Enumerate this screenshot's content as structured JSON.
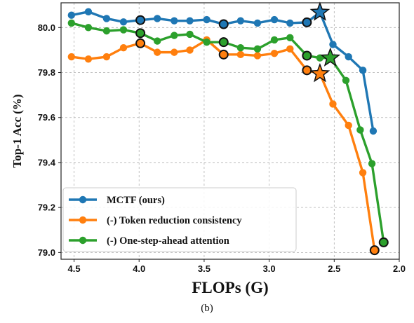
{
  "caption": "(b)",
  "chart_data": {
    "type": "line",
    "xlabel": "FLOPs (G)",
    "ylabel": "Top-1 Acc (%)",
    "xlim": [
      4.6,
      2.0
    ],
    "ylim": [
      78.97,
      80.11
    ],
    "x_inverted": true,
    "xticks": [
      "4.5",
      "4.0",
      "3.5",
      "3.0",
      "2.5",
      "2.0"
    ],
    "yticks": [
      "79.0",
      "79.2",
      "79.4",
      "79.6",
      "79.8",
      "80.0"
    ],
    "grid": true,
    "legend_position": "lower-left",
    "series": [
      {
        "name": "MCTF (ours)",
        "color": "#1f77b4",
        "x": [
          4.52,
          4.39,
          4.25,
          4.12,
          3.99,
          3.86,
          3.73,
          3.61,
          3.48,
          3.35,
          3.22,
          3.09,
          2.96,
          2.84,
          2.71,
          2.61,
          2.51,
          2.39,
          2.28,
          2.2
        ],
        "y": [
          80.055,
          80.07,
          80.04,
          80.025,
          80.033,
          80.04,
          80.03,
          80.03,
          80.035,
          80.015,
          80.03,
          80.02,
          80.035,
          80.02,
          80.023,
          80.068,
          79.925,
          79.87,
          79.81,
          79.54
        ],
        "highlighted_indices": [
          4,
          9,
          14
        ],
        "star_index": 15
      },
      {
        "name": "(-) Token reduction consistency",
        "color": "#ff7f0e",
        "x": [
          4.52,
          4.39,
          4.25,
          4.12,
          3.99,
          3.86,
          3.73,
          3.61,
          3.48,
          3.35,
          3.22,
          3.09,
          2.96,
          2.84,
          2.71,
          2.61,
          2.51,
          2.39,
          2.28,
          2.19
        ],
        "y": [
          79.87,
          79.86,
          79.87,
          79.91,
          79.93,
          79.89,
          79.89,
          79.9,
          79.945,
          79.88,
          79.88,
          79.875,
          79.885,
          79.905,
          79.81,
          79.795,
          79.66,
          79.565,
          79.355,
          79.01
        ],
        "highlighted_indices": [
          4,
          9,
          14,
          19
        ],
        "star_index": 15
      },
      {
        "name": "(-) One-step-ahead attention",
        "color": "#2ca02c",
        "x": [
          4.52,
          4.39,
          4.25,
          4.12,
          3.99,
          3.86,
          3.73,
          3.61,
          3.48,
          3.35,
          3.22,
          3.09,
          2.96,
          2.84,
          2.71,
          2.61,
          2.53,
          2.41,
          2.3,
          2.21,
          2.12
        ],
        "y": [
          80.02,
          80.0,
          79.985,
          79.99,
          79.975,
          79.94,
          79.965,
          79.97,
          79.935,
          79.935,
          79.91,
          79.905,
          79.945,
          79.955,
          79.875,
          79.865,
          79.865,
          79.765,
          79.545,
          79.395,
          79.045
        ],
        "highlighted_indices": [
          4,
          9,
          14,
          20
        ],
        "star_index": 16
      }
    ]
  }
}
